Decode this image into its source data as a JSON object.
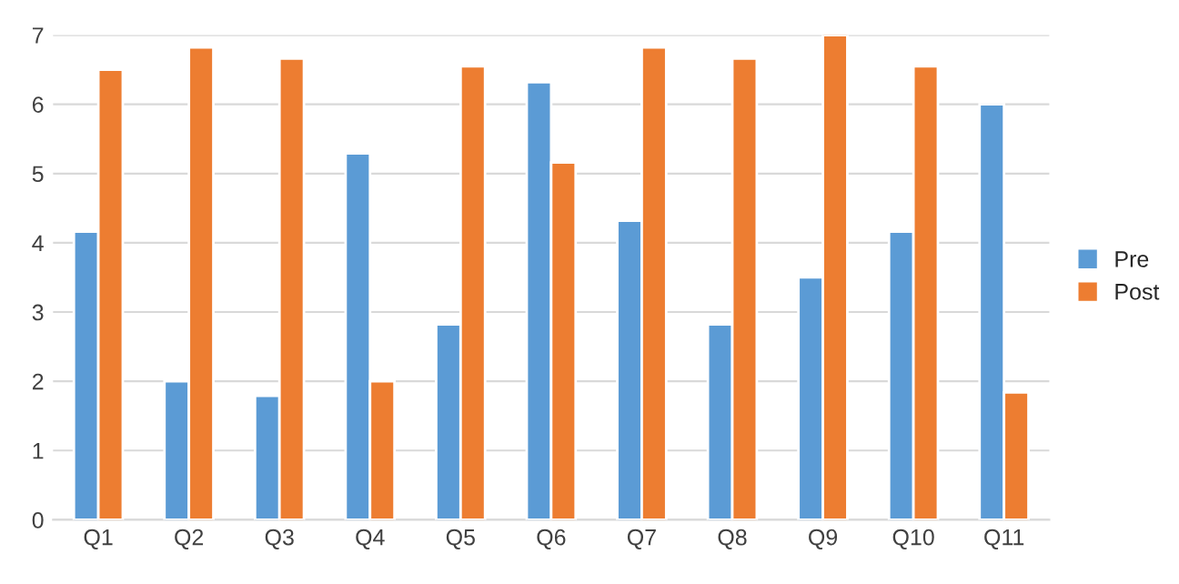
{
  "chart_data": {
    "type": "bar",
    "categories": [
      "Q1",
      "Q2",
      "Q3",
      "Q4",
      "Q5",
      "Q6",
      "Q7",
      "Q8",
      "Q9",
      "Q10",
      "Q11"
    ],
    "series": [
      {
        "name": "Pre",
        "color": "#5b9bd5",
        "values": [
          4.16,
          2.0,
          1.79,
          5.29,
          2.82,
          6.32,
          4.32,
          2.82,
          3.5,
          4.16,
          6.0
        ]
      },
      {
        "name": "Post",
        "color": "#ed7d31",
        "values": [
          6.5,
          6.82,
          6.66,
          2.0,
          6.55,
          5.16,
          6.82,
          6.66,
          7.0,
          6.55,
          1.84
        ]
      }
    ],
    "ylim": [
      0,
      7
    ],
    "yticks": [
      0,
      1,
      2,
      3,
      4,
      5,
      6,
      7
    ],
    "grid": "y",
    "legend": "right"
  }
}
